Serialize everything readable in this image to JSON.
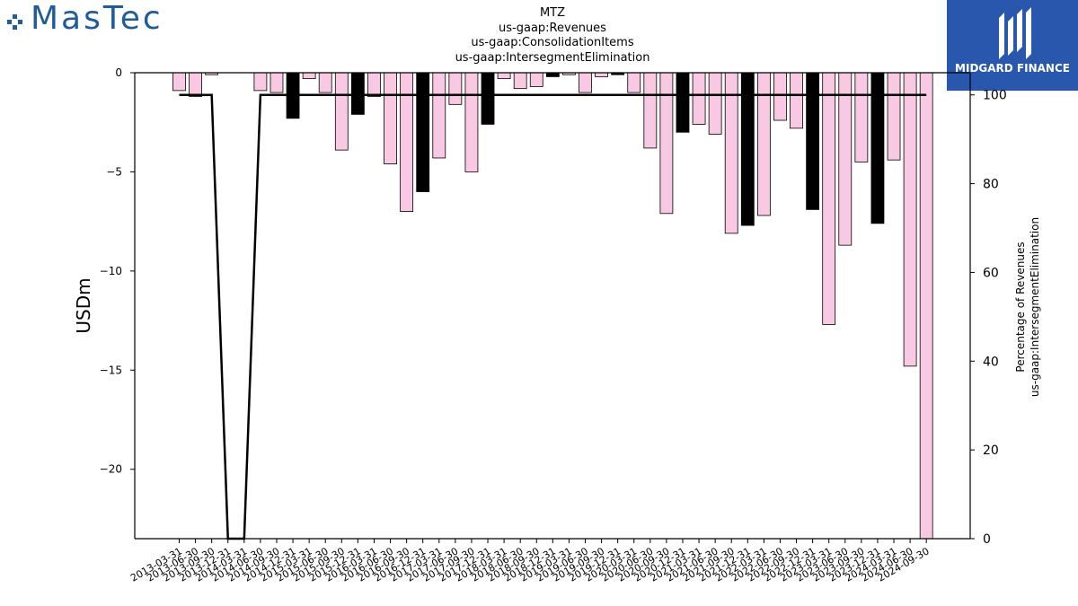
{
  "logos": {
    "left_text": "MasTec",
    "right_text": "MIDGARD FINANCE"
  },
  "title_lines": [
    "MTZ",
    "us-gaap:Revenues",
    "us-gaap:ConsolidationItems",
    "us-gaap:IntersegmentElimination"
  ],
  "chart_data": {
    "type": "bar",
    "title": "MTZ\nus-gaap:Revenues\nus-gaap:ConsolidationItems\nus-gaap:IntersegmentElimination",
    "ylabel": "USDm",
    "y2label": "Percentage of Revenues\nus-gaap:IntersegmentElimination",
    "ylim": [
      -23.5,
      0
    ],
    "y2lim": [
      0,
      105
    ],
    "yticks": [
      0,
      -5,
      -10,
      -15,
      -20
    ],
    "ytick_labels": [
      "0",
      "−5",
      "−10",
      "−15",
      "−20"
    ],
    "y2ticks": [
      0,
      20,
      40,
      60,
      80,
      100
    ],
    "categories": [
      "2013-03-31",
      "2013-06-30",
      "2013-09-30",
      "2013-12-31",
      "2014-03-31",
      "2014-06-30",
      "2014-09-30",
      "2014-12-31",
      "2015-03-31",
      "2015-06-30",
      "2015-09-30",
      "2015-12-31",
      "2016-03-31",
      "2016-06-30",
      "2016-09-30",
      "2016-12-31",
      "2017-03-31",
      "2017-06-30",
      "2017-09-30",
      "2017-12-31",
      "2018-03-31",
      "2018-06-30",
      "2018-09-30",
      "2018-12-31",
      "2019-03-31",
      "2019-06-30",
      "2019-09-30",
      "2019-12-31",
      "2020-03-31",
      "2020-06-30",
      "2020-09-30",
      "2020-12-31",
      "2021-03-31",
      "2021-06-30",
      "2021-09-30",
      "2021-12-31",
      "2022-03-31",
      "2022-06-30",
      "2022-09-30",
      "2022-12-31",
      "2023-03-31",
      "2023-06-30",
      "2023-09-30",
      "2023-12-31",
      "2024-03-31",
      "2024-06-30",
      "2024-09-30"
    ],
    "series": [
      {
        "kind": "bar",
        "values": [
          -0.9,
          -1.2,
          -0.1,
          0,
          0,
          -0.9,
          -1.0,
          -2.3,
          -0.3,
          -1.0,
          -3.9,
          -2.1,
          -1.2,
          -4.6,
          -7.0,
          -6.0,
          -4.3,
          -1.6,
          -5.0,
          -2.6,
          -0.3,
          -0.8,
          -0.7,
          -0.2,
          -0.1,
          -1.0,
          -0.2,
          -0.1,
          -1.0,
          -3.8,
          -7.1,
          -3.0,
          -2.6,
          -3.1,
          -8.1,
          -7.7,
          -7.2,
          -2.4,
          -2.8,
          -6.9,
          -12.7,
          -8.7,
          -4.5,
          -7.6,
          -4.4,
          -14.8,
          -23.5
        ],
        "colors": [
          "pink",
          "pink",
          "pink",
          "none",
          "none",
          "pink",
          "pink",
          "black",
          "pink",
          "pink",
          "pink",
          "black",
          "pink",
          "pink",
          "pink",
          "black",
          "pink",
          "pink",
          "pink",
          "black",
          "pink",
          "pink",
          "pink",
          "black",
          "pink",
          "pink",
          "pink",
          "black",
          "pink",
          "pink",
          "pink",
          "black",
          "pink",
          "pink",
          "pink",
          "black",
          "pink",
          "pink",
          "pink",
          "black",
          "pink",
          "pink",
          "pink",
          "black",
          "pink",
          "pink",
          "pink"
        ]
      },
      {
        "kind": "line",
        "axis": "right",
        "values": [
          100,
          100,
          100,
          0,
          0,
          100,
          100,
          100,
          100,
          100,
          100,
          100,
          100,
          100,
          100,
          100,
          100,
          100,
          100,
          100,
          100,
          100,
          100,
          100,
          100,
          100,
          100,
          100,
          100,
          100,
          100,
          100,
          100,
          100,
          100,
          100,
          100,
          100,
          100,
          100,
          100,
          100,
          100,
          100,
          100,
          100,
          100
        ]
      }
    ],
    "colors": {
      "pink": "#f9c9e3",
      "black": "#000000",
      "line": "#000000"
    }
  }
}
